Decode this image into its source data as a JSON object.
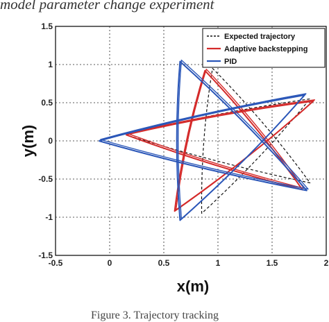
{
  "caption_top": "model parameter change experiment",
  "caption_bottom": "Figure 3. Trajectory tracking",
  "chart_data": {
    "type": "line",
    "xlabel": "x(m)",
    "ylabel": "y(m)",
    "xlim": [
      -0.5,
      2
    ],
    "ylim": [
      -1.5,
      1.5
    ],
    "x_ticks": [
      "-0.5",
      "0",
      "0.5",
      "1",
      "1.5",
      "2"
    ],
    "y_ticks": [
      "1.5",
      "1",
      "0.5",
      "0",
      "-0.5",
      "-1",
      "-1.5"
    ],
    "grid": true,
    "legend_position": "top-right",
    "legend": [
      "Expected trajectory",
      "Adaptive backstepping",
      "PID"
    ],
    "series": [
      {
        "name": "Expected trajectory",
        "color": "#111111",
        "style": "dashed",
        "points": [
          [
            0.15,
            0.08
          ],
          [
            1.85,
            0.55
          ],
          [
            0.85,
            -0.95
          ],
          [
            0.95,
            0.95
          ],
          [
            1.85,
            -0.55
          ],
          [
            0.15,
            0.08
          ]
        ]
      },
      {
        "name": "Adaptive backstepping",
        "color": "#d42a2a",
        "style": "solid",
        "points": [
          [
            0.15,
            0.08
          ],
          [
            1.88,
            0.52
          ],
          [
            0.6,
            -0.92
          ],
          [
            0.88,
            0.92
          ],
          [
            1.78,
            -0.64
          ],
          [
            0.15,
            0.08
          ]
        ]
      },
      {
        "name": "PID",
        "color": "#2a56b8",
        "style": "solid",
        "points": [
          [
            -0.1,
            0.0
          ],
          [
            1.8,
            0.6
          ],
          [
            0.65,
            -1.04
          ],
          [
            0.65,
            1.04
          ],
          [
            1.82,
            -0.65
          ],
          [
            -0.1,
            0.0
          ]
        ]
      }
    ]
  }
}
